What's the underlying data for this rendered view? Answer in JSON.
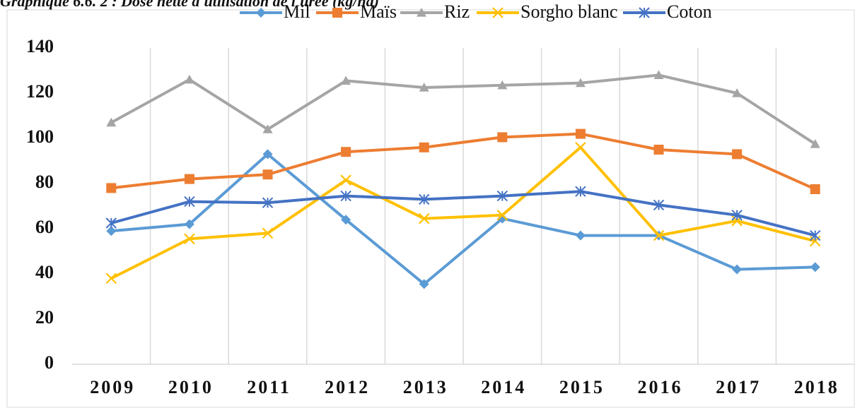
{
  "chart_data": {
    "type": "line",
    "title": "Graphique 6.6. 2 : Dose nette d'utilisation de l'urée (kg/ha)",
    "categories": [
      "2009",
      "2010",
      "2011",
      "2012",
      "2013",
      "2014",
      "2015",
      "2016",
      "2017",
      "2018"
    ],
    "series": [
      {
        "name": "Mil",
        "color": "#5b9bd5",
        "marker": "diamond",
        "values": [
          59,
          62,
          93,
          64,
          35.5,
          64.5,
          57,
          57,
          42,
          43
        ]
      },
      {
        "name": "Maïs",
        "color": "#ed7d31",
        "marker": "square",
        "values": [
          78,
          82,
          84,
          94,
          96,
          100.5,
          102,
          95,
          93,
          77.5
        ]
      },
      {
        "name": "Riz",
        "color": "#a5a5a5",
        "marker": "triangle",
        "values": [
          107,
          126,
          104,
          125.5,
          122.5,
          123.5,
          124.5,
          128,
          120,
          97.5
        ]
      },
      {
        "name": "Sorgho blanc",
        "color": "#ffc000",
        "marker": "x",
        "values": [
          38,
          55.5,
          58,
          81.5,
          64.5,
          66,
          96,
          57,
          63.5,
          54.5
        ]
      },
      {
        "name": "Coton",
        "color": "#4472c4",
        "marker": "star",
        "values": [
          62.5,
          72,
          71.5,
          74.5,
          73,
          74.5,
          76.5,
          70.5,
          66,
          57
        ]
      }
    ],
    "ylim": [
      0,
      140
    ],
    "yticks": [
      0,
      20,
      40,
      60,
      80,
      100,
      120,
      140
    ],
    "legend": "top"
  }
}
